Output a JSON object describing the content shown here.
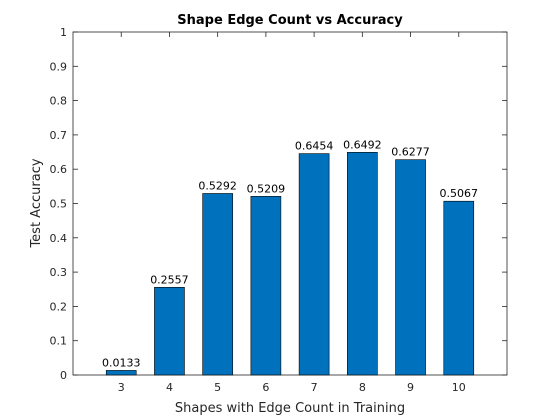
{
  "chart_data": {
    "type": "bar",
    "title": "Shape Edge Count vs Accuracy",
    "xlabel": "Shapes with Edge Count in Training",
    "ylabel": "Test Accuracy",
    "categories": [
      "3",
      "4",
      "5",
      "6",
      "7",
      "8",
      "9",
      "10"
    ],
    "values": [
      0.0133,
      0.2557,
      0.5292,
      0.5209,
      0.6454,
      0.6492,
      0.6277,
      0.5067
    ],
    "data_labels": [
      "0.0133",
      "0.2557",
      "0.5292",
      "0.5209",
      "0.6454",
      "0.6492",
      "0.6277",
      "0.5067"
    ],
    "ylim": [
      0,
      1
    ],
    "yticks": [
      0,
      0.1,
      0.2,
      0.3,
      0.4,
      0.5,
      0.6,
      0.7,
      0.8,
      0.9,
      1
    ],
    "ytick_labels": [
      "0",
      "0.1",
      "0.2",
      "0.3",
      "0.4",
      "0.5",
      "0.6",
      "0.7",
      "0.8",
      "0.9",
      "1"
    ],
    "grid": false,
    "legend": "none",
    "bar_color": "#0072BD",
    "bar_edge_color": "#000000"
  }
}
